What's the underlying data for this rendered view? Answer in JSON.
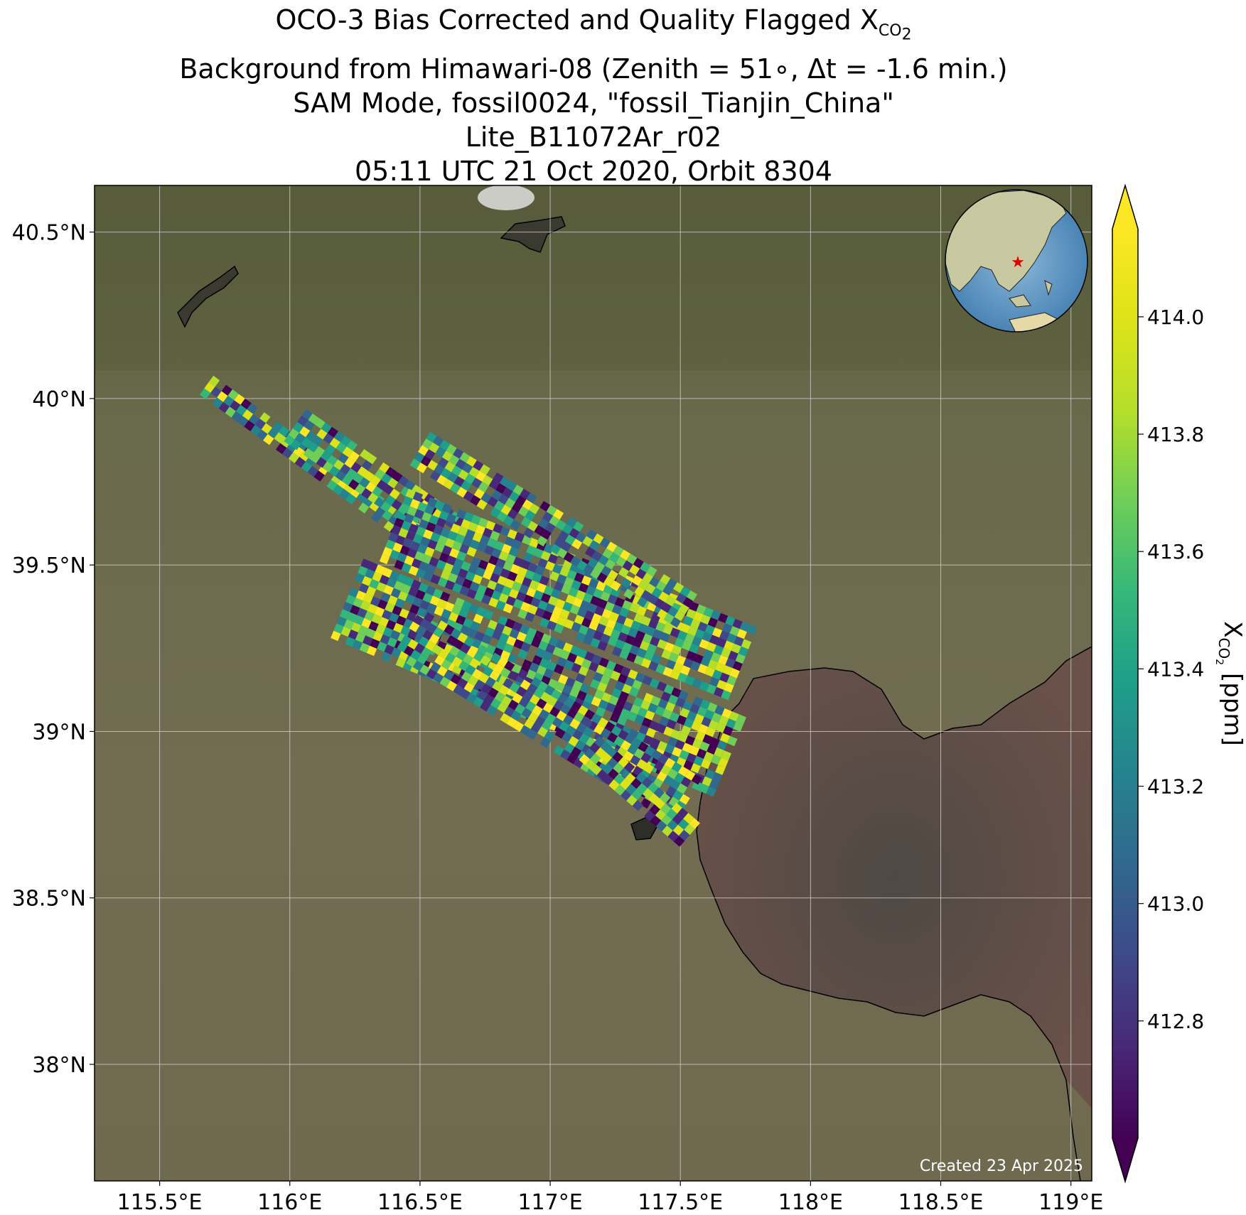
{
  "title": {
    "line1_main": "OCO-3 Bias Corrected and Quality Flagged X",
    "line1_sub": "CO",
    "line1_subsub": "2",
    "line2": "Background from Himawari-08 (Zenith = 51∘, Δt = -1.6 min.)",
    "line3": "SAM Mode, fossil0024, \"fossil_Tianjin_China\"",
    "line4": "Lite_B11072Ar_r02",
    "line5": "05:11 UTC 21 Oct 2020, Orbit 8304"
  },
  "map": {
    "lon_range": [
      115.25,
      119.08
    ],
    "lat_range": [
      37.65,
      40.64
    ],
    "lon_ticks": [
      {
        "value": 115.5,
        "label": "115.5°E"
      },
      {
        "value": 116.0,
        "label": "116°E"
      },
      {
        "value": 116.5,
        "label": "116.5°E"
      },
      {
        "value": 117.0,
        "label": "117°E"
      },
      {
        "value": 117.5,
        "label": "117.5°E"
      },
      {
        "value": 118.0,
        "label": "118°E"
      },
      {
        "value": 118.5,
        "label": "118.5°E"
      },
      {
        "value": 119.0,
        "label": "119°E"
      }
    ],
    "lat_ticks": [
      {
        "value": 40.5,
        "label": "40.5°N"
      },
      {
        "value": 40.0,
        "label": "40°N"
      },
      {
        "value": 39.5,
        "label": "39.5°N"
      },
      {
        "value": 39.0,
        "label": "39°N"
      },
      {
        "value": 38.5,
        "label": "38.5°N"
      },
      {
        "value": 38.0,
        "label": "38°N"
      }
    ],
    "grid": true,
    "created_note": "Created 23 Apr 2025",
    "inset": "globe-icon",
    "target_marker": "red-star-icon",
    "colors": {
      "land": "#6e6a4e",
      "sea": "#5d4a44",
      "grid": "#cfcfcf",
      "coastline": "#000000"
    }
  },
  "colorbar": {
    "min": 412.6,
    "max": 414.15,
    "ticks": [
      412.8,
      413.0,
      413.2,
      413.4,
      413.6,
      413.8,
      414.0
    ],
    "tick_labels": [
      "412.8",
      "413.0",
      "413.2",
      "413.4",
      "413.6",
      "413.8",
      "414.0"
    ],
    "colormap": "viridis",
    "extend": "both",
    "label_main": "X",
    "label_sub": "CO",
    "label_subsub": "2",
    "label_units": " [ppm]"
  },
  "chart_data": {
    "type": "heatmap",
    "title": "OCO-3 Bias Corrected and Quality Flagged XCO2",
    "value_label": "XCO2 [ppm]",
    "value_range": [
      412.6,
      414.15
    ],
    "swaths": [
      {
        "lon_start": 115.68,
        "lat_start": 40.04,
        "lon_end": 116.55,
        "lat_end": 39.55,
        "width_deg": 0.09
      },
      {
        "lon_start": 116.02,
        "lat_start": 39.92,
        "lon_end": 116.65,
        "lat_end": 39.58,
        "width_deg": 0.12
      },
      {
        "lon_start": 116.4,
        "lat_start": 39.62,
        "lon_end": 117.75,
        "lat_end": 39.2,
        "width_deg": 0.25
      },
      {
        "lon_start": 116.5,
        "lat_start": 39.85,
        "lon_end": 117.55,
        "lat_end": 39.35,
        "width_deg": 0.14
      },
      {
        "lon_start": 116.22,
        "lat_start": 39.4,
        "lon_end": 117.7,
        "lat_end": 38.92,
        "width_deg": 0.26
      },
      {
        "lon_start": 116.45,
        "lat_start": 39.3,
        "lon_end": 117.55,
        "lat_end": 38.78,
        "width_deg": 0.18
      },
      {
        "lon_start": 117.15,
        "lat_start": 38.95,
        "lon_end": 117.55,
        "lat_end": 38.68,
        "width_deg": 0.1
      }
    ]
  }
}
